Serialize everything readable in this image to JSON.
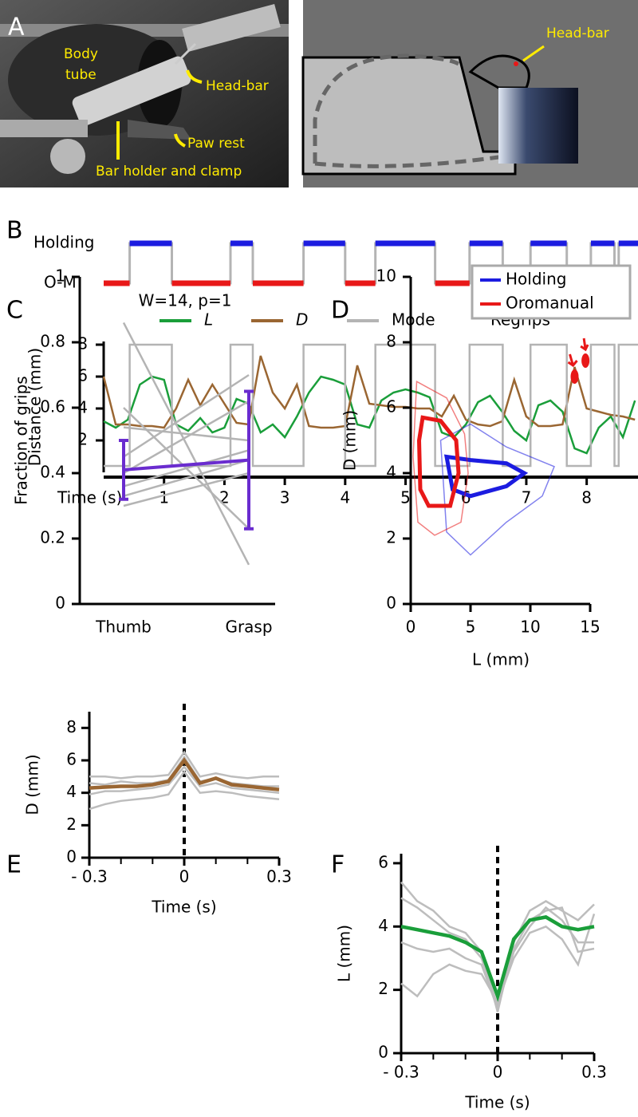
{
  "panel_a": {
    "label": "A",
    "body_tube": [
      "Body",
      "tube"
    ],
    "head_bar": "Head-bar",
    "paw_rest": "Paw rest",
    "bar_holder": "Bar holder and clamp",
    "schematic_head_bar": "Head-bar"
  },
  "chart_data": [
    {
      "type": "timeline",
      "label": "B",
      "states": [
        "Holding",
        "O-M"
      ],
      "state_colors": [
        "#1c1ce0",
        "#e81818"
      ],
      "xlabel": "Time (s)",
      "ylabel": "Distance (mm)",
      "xlim": [
        0,
        8.85
      ],
      "ylim": [
        0,
        8.2
      ],
      "xticks": [
        1,
        2,
        3,
        4,
        5,
        6,
        7,
        8
      ],
      "yticks": [
        2,
        4,
        6,
        8
      ],
      "x": [
        0,
        0.2,
        0.4,
        0.6,
        0.8,
        1.0,
        1.2,
        1.4,
        1.6,
        1.8,
        2.0,
        2.2,
        2.4,
        2.6,
        2.8,
        3.0,
        3.2,
        3.4,
        3.6,
        3.8,
        4.0,
        4.2,
        4.4,
        4.6,
        4.8,
        5.0,
        5.2,
        5.4,
        5.6,
        5.8,
        6.0,
        6.2,
        6.4,
        6.6,
        6.8,
        7.0,
        7.2,
        7.4,
        7.6,
        7.8,
        8.0,
        8.2,
        8.4,
        8.6,
        8.8
      ],
      "series": [
        {
          "name": "L",
          "color": "#1a9e3a",
          "values": [
            3.2,
            2.8,
            3.3,
            5.5,
            6.0,
            5.8,
            3.0,
            2.6,
            3.4,
            2.5,
            2.8,
            4.6,
            4.3,
            2.5,
            3.0,
            2.2,
            3.5,
            5.0,
            6.0,
            5.8,
            5.5,
            3.0,
            2.8,
            4.5,
            5.0,
            5.2,
            5.0,
            4.7,
            2.5,
            2.2,
            3.0,
            4.4,
            4.8,
            3.8,
            2.6,
            2.0,
            4.2,
            4.5,
            3.8,
            1.5,
            1.2,
            2.8,
            3.5,
            2.2,
            4.5
          ]
        },
        {
          "name": "D",
          "color": "#9a6632",
          "values": [
            6.0,
            3.0,
            3.0,
            2.9,
            2.9,
            2.8,
            4.0,
            5.8,
            4.2,
            5.5,
            4.3,
            3.1,
            3.0,
            7.3,
            5.0,
            4.0,
            5.5,
            2.9,
            2.8,
            2.8,
            2.9,
            6.7,
            4.3,
            4.2,
            4.1,
            4.1,
            4.0,
            4.0,
            3.5,
            4.8,
            3.3,
            3.0,
            2.9,
            3.2,
            5.8,
            3.5,
            2.9,
            2.9,
            3.0,
            6.6,
            4.0,
            3.8,
            3.6,
            3.5,
            3.3
          ]
        },
        {
          "name": "Mode",
          "color": "#b4b4b4",
          "x": [
            0,
            0.43,
            0.43,
            1.13,
            1.13,
            2.1,
            2.1,
            2.47,
            2.47,
            3.31,
            3.31,
            4.0,
            4.0,
            4.5,
            4.5,
            5.49,
            5.49,
            6.06,
            6.06,
            6.61,
            6.61,
            7.07,
            7.07,
            7.67,
            7.67,
            8.07,
            8.07,
            8.46,
            8.46,
            8.53,
            8.53,
            8.85
          ],
          "values": [
            0.4,
            0.4,
            8,
            8,
            0.4,
            0.4,
            8,
            8,
            0.4,
            0.4,
            8,
            8,
            0.4,
            0.4,
            8,
            8,
            0.4,
            0.4,
            8,
            8,
            0.4,
            0.4,
            8,
            8,
            0.4,
            0.4,
            8,
            8,
            0.4,
            0.4,
            8,
            8
          ]
        },
        {
          "name": "Regrips",
          "color": "#e81818",
          "x": [
            7.8,
            7.98
          ],
          "values": [
            6.0,
            7.0
          ]
        }
      ]
    },
    {
      "type": "paired",
      "label": "C",
      "ylabel": "Fraction of grips",
      "annotation": "W=14, p=1",
      "categories": [
        "Thumb",
        "Grasp"
      ],
      "ylim": [
        0,
        1
      ],
      "yticks": [
        0,
        0.2,
        0.4,
        0.6,
        0.8,
        1
      ],
      "pairs": [
        [
          0.86,
          0.12
        ],
        [
          0.6,
          0.23
        ],
        [
          0.54,
          0.5
        ],
        [
          0.45,
          0.7
        ],
        [
          0.4,
          0.62
        ],
        [
          0.36,
          0.47
        ],
        [
          0.33,
          0.44
        ],
        [
          0.3,
          0.4
        ]
      ],
      "pair_color": "#b4b4b4",
      "mean": [
        0.41,
        0.44
      ],
      "error": [
        0.09,
        0.21
      ],
      "mean_color": "#6a2ccf"
    },
    {
      "type": "contour",
      "label": "D",
      "xlabel": "L (mm)",
      "ylabel": "D (mm)",
      "xlim": [
        0,
        15
      ],
      "ylim": [
        0,
        10
      ],
      "xticks": [
        0,
        5,
        10,
        15
      ],
      "yticks": [
        0,
        2,
        4,
        6,
        8,
        10
      ],
      "series": [
        {
          "name": "Holding",
          "color": "#1c1ce0",
          "contours": [
            {
              "x": [
                3,
                5,
                8,
                9.5,
                8,
                5,
                3.5
              ],
              "values": [
                4.5,
                4.4,
                4.3,
                4.0,
                3.6,
                3.3,
                3.5
              ]
            },
            {
              "x": [
                2.5,
                5,
                8,
                12,
                11,
                8,
                5,
                3
              ],
              "values": [
                5.0,
                5.5,
                4.8,
                4.2,
                3.3,
                2.5,
                1.5,
                2.2
              ]
            }
          ]
        },
        {
          "name": "Oromanual",
          "color": "#e81818",
          "contours": [
            {
              "x": [
                1,
                2.5,
                3.8,
                4,
                3.3,
                1.5,
                0.8,
                0.7
              ],
              "values": [
                5.7,
                5.6,
                5.0,
                4.0,
                3.0,
                3.0,
                3.5,
                5.0
              ]
            },
            {
              "x": [
                0.5,
                3,
                4.5,
                4.8,
                4.2,
                2,
                0.6,
                0.2
              ],
              "values": [
                6.8,
                6.3,
                5.2,
                4.0,
                2.5,
                2.1,
                2.5,
                4.5
              ]
            }
          ]
        }
      ]
    },
    {
      "type": "traces",
      "label": "E",
      "xlabel": "Time (s)",
      "ylabel": "D (mm)",
      "xlim": [
        -0.3,
        0.3
      ],
      "ylim": [
        0,
        9
      ],
      "xticks": [
        {
          "value": -0.3,
          "label": "- 0.3"
        },
        0,
        0.3
      ],
      "xminor": [
        -0.2,
        -0.1,
        0.1,
        0.2
      ],
      "yticks": [
        0,
        2,
        4,
        6,
        8
      ],
      "x": [
        -0.3,
        -0.25,
        -0.2,
        -0.15,
        -0.1,
        -0.05,
        0,
        0.05,
        0.1,
        0.15,
        0.2,
        0.25,
        0.3
      ],
      "series": [
        {
          "color": "#bdbdbd",
          "values": [
            5.0,
            5.0,
            4.9,
            5.0,
            5.0,
            5.1,
            6.5,
            5.0,
            5.2,
            5.0,
            4.9,
            5.0,
            5.0
          ]
        },
        {
          "color": "#bdbdbd",
          "values": [
            4.6,
            4.5,
            4.7,
            4.6,
            4.6,
            4.8,
            6.2,
            4.7,
            4.9,
            4.6,
            4.5,
            4.4,
            4.4
          ]
        },
        {
          "color": "#bdbdbd",
          "values": [
            3.9,
            4.1,
            4.1,
            4.2,
            4.3,
            4.5,
            5.6,
            4.4,
            4.6,
            4.3,
            4.2,
            4.1,
            4.0
          ]
        },
        {
          "color": "#bdbdbd",
          "values": [
            3.0,
            3.3,
            3.5,
            3.6,
            3.7,
            3.9,
            5.3,
            4.0,
            4.1,
            4.0,
            3.8,
            3.7,
            3.6
          ]
        },
        {
          "color": "#9a6632",
          "values": [
            4.3,
            4.35,
            4.4,
            4.4,
            4.5,
            4.7,
            6.0,
            4.6,
            4.9,
            4.5,
            4.4,
            4.3,
            4.2
          ]
        }
      ]
    },
    {
      "type": "traces",
      "label": "F",
      "xlabel": "Time (s)",
      "ylabel": "L (mm)",
      "xlim": [
        -0.3,
        0.3
      ],
      "ylim": [
        0,
        6.3
      ],
      "xticks": [
        {
          "value": -0.3,
          "label": "- 0.3"
        },
        0,
        0.3
      ],
      "xminor": [
        -0.2,
        -0.1,
        0.1,
        0.2
      ],
      "yticks": [
        0,
        2,
        4,
        6
      ],
      "x": [
        -0.3,
        -0.25,
        -0.2,
        -0.15,
        -0.1,
        -0.05,
        0,
        0.05,
        0.1,
        0.15,
        0.2,
        0.25,
        0.3
      ],
      "series": [
        {
          "color": "#bdbdbd",
          "values": [
            5.4,
            4.8,
            4.5,
            4.0,
            3.8,
            3.2,
            1.3,
            3.5,
            4.5,
            4.8,
            4.5,
            4.2,
            4.7
          ]
        },
        {
          "color": "#bdbdbd",
          "values": [
            4.9,
            4.6,
            4.2,
            3.8,
            3.6,
            3.0,
            1.5,
            3.2,
            4.0,
            4.6,
            4.2,
            3.5,
            3.5
          ]
        },
        {
          "color": "#bdbdbd",
          "values": [
            3.5,
            3.3,
            3.2,
            3.3,
            3.0,
            2.8,
            1.4,
            3.3,
            4.2,
            4.5,
            4.6,
            3.2,
            3.3
          ]
        },
        {
          "color": "#bdbdbd",
          "values": [
            2.2,
            1.8,
            2.5,
            2.8,
            2.6,
            2.5,
            1.6,
            3.0,
            3.8,
            4.0,
            3.6,
            2.8,
            4.4
          ]
        },
        {
          "color": "#1a9e3a",
          "values": [
            4.0,
            3.9,
            3.8,
            3.7,
            3.5,
            3.2,
            1.8,
            3.6,
            4.2,
            4.3,
            4.0,
            3.9,
            4.0
          ]
        }
      ]
    }
  ]
}
